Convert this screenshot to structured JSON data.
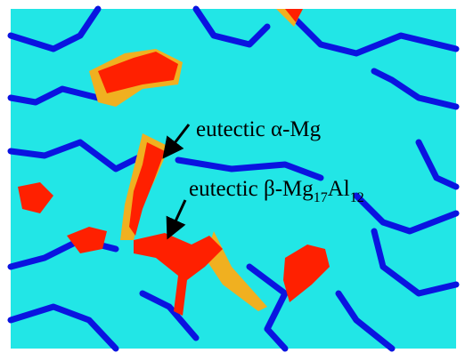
{
  "annotations": [
    {
      "parts": [
        "eutectic α-Mg"
      ]
    },
    {
      "parts": [
        "eutectic β-Mg",
        "17",
        "Al",
        "12"
      ]
    }
  ]
}
